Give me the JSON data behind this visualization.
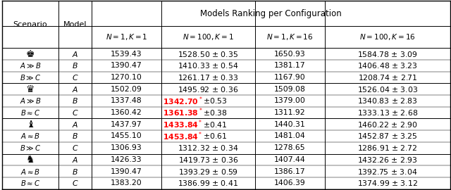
{
  "title": "Models Ranking per Configuration",
  "col_header_labels": [
    "$N=1,K=1$",
    "$N=100,K=1$",
    "$N=1,K=16$",
    "$N=100,K=16$"
  ],
  "scenario_symbols": [
    "♚",
    "♛",
    "♝",
    "♞"
  ],
  "scenario_rows": [
    [
      "",
      "$A\\gg B$",
      "$B\\gg C$"
    ],
    [
      "",
      "$A\\gg B$",
      "$B\\approx C$"
    ],
    [
      "",
      "$A\\approx B$",
      "$B\\gg C$"
    ],
    [
      "",
      "$A\\approx B$",
      "$B\\approx C$"
    ]
  ],
  "model_labels": [
    "$A$",
    "$B$",
    "$C$"
  ],
  "cell_data": [
    [
      "1539.43",
      "1528.50 ± 0.35",
      "1650.93",
      "1584.78 ± 3.09"
    ],
    [
      "1390.47",
      "1410.33 ± 0.54",
      "1381.17",
      "1406.48 ± 3.23"
    ],
    [
      "1270.10",
      "1261.17 ± 0.33",
      "1167.90",
      "1208.74 ± 2.71"
    ],
    [
      "1502.09",
      "1495.92 ± 0.36",
      "1509.08",
      "1526.04 ± 3.03"
    ],
    [
      "1337.48",
      "1342.70* ± 0.53",
      "1379.00",
      "1340.83 ± 2.83"
    ],
    [
      "1360.42",
      "1361.38* ± 0.38",
      "1311.92",
      "1333.13 ± 2.68"
    ],
    [
      "1437.97",
      "1433.84* ± 0.41",
      "1440.31",
      "1460.22 ± 2.90"
    ],
    [
      "1455.10",
      "1453.84* ± 0.61",
      "1481.04",
      "1452.87 ± 3.25"
    ],
    [
      "1306.93",
      "1312.32 ± 0.34",
      "1278.65",
      "1286.91 ± 2.72"
    ],
    [
      "1426.33",
      "1419.73 ± 0.36",
      "1407.44",
      "1432.26 ± 2.93"
    ],
    [
      "1390.47",
      "1393.29 ± 0.59",
      "1386.17",
      "1392.75 ± 3.04"
    ],
    [
      "1383.20",
      "1386.99 ± 0.41",
      "1406.39",
      "1374.99 ± 3.12"
    ]
  ],
  "red_rows": [
    4,
    5,
    6,
    7
  ],
  "red_col": 1,
  "figsize": [
    6.4,
    2.7
  ],
  "dpi": 100,
  "fs_title": 8.5,
  "fs_header": 8,
  "fs_data": 7.8,
  "fs_chess": 10
}
